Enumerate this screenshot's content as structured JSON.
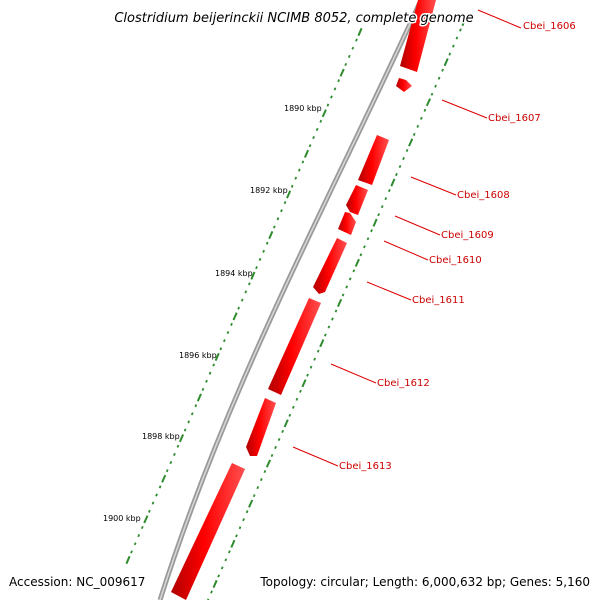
{
  "title": "Clostridium beijerinckii NCIMB 8052, complete genome",
  "accession": "Accession: NC_009617",
  "summary": "Topology: circular; Length: 6,000,632 bp; Genes: 5,160",
  "colors": {
    "gene": "#ff0000",
    "gene_label": "#cc0000",
    "backbone": "#808080",
    "ticks": "#2e8b2e"
  },
  "kbp_labels": [
    "1890 kbp",
    "1892 kbp",
    "1894 kbp",
    "1896 kbp",
    "1898 kbp",
    "1900 kbp"
  ],
  "genes": [
    {
      "label": "Cbei_1606"
    },
    {
      "label": "Cbei_1607"
    },
    {
      "label": "Cbei_1608"
    },
    {
      "label": "Cbei_1609"
    },
    {
      "label": "Cbei_1610"
    },
    {
      "label": "Cbei_1611"
    },
    {
      "label": "Cbei_1612"
    },
    {
      "label": "Cbei_1613"
    }
  ]
}
